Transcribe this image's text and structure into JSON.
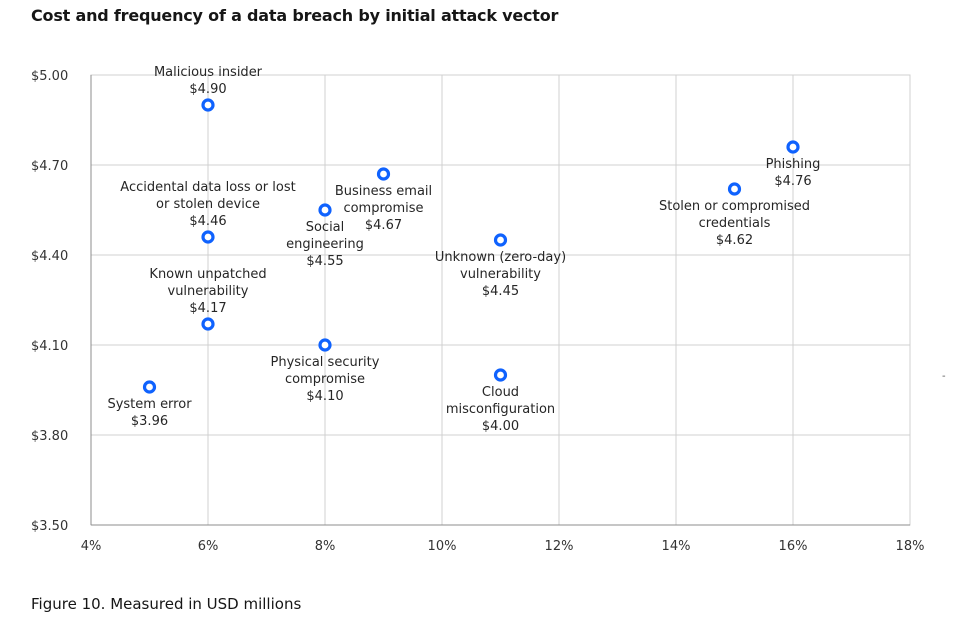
{
  "title": "Cost and frequency of a data breach by initial attack vector",
  "caption": "Figure 10. Measured in USD millions",
  "stray_mark": "-",
  "colors": {
    "marker": "#0f62fe",
    "grid": "#d0d0d0",
    "axis": "#8d8d8d"
  },
  "chart_data": {
    "type": "scatter",
    "title": "Cost and frequency of a data breach by initial attack vector",
    "xlabel": "",
    "ylabel": "",
    "xlim": [
      4,
      18
    ],
    "ylim": [
      3.5,
      5.0
    ],
    "x_ticks": [
      4,
      6,
      8,
      10,
      12,
      14,
      16,
      18
    ],
    "x_tick_labels": [
      "4%",
      "6%",
      "8%",
      "10%",
      "12%",
      "14%",
      "16%",
      "18%"
    ],
    "y_ticks": [
      3.5,
      3.8,
      4.1,
      4.4,
      4.7,
      5.0
    ],
    "y_tick_labels": [
      "$3.50",
      "$3.80",
      "$4.10",
      "$4.40",
      "$4.70",
      "$5.00"
    ],
    "grid": true,
    "points": [
      {
        "name": "Malicious insider",
        "x": 6,
        "y": 4.9,
        "label": [
          "Malicious insider",
          "$4.90"
        ],
        "pos": "above"
      },
      {
        "name": "Accidental data loss or lost or stolen device",
        "x": 6,
        "y": 4.46,
        "label": [
          "Accidental data loss or lost",
          "or stolen device",
          "$4.46"
        ],
        "pos": "above"
      },
      {
        "name": "Known unpatched vulnerability",
        "x": 6,
        "y": 4.17,
        "label": [
          "Known unpatched",
          "vulnerability",
          "$4.17"
        ],
        "pos": "above"
      },
      {
        "name": "System error",
        "x": 5,
        "y": 3.96,
        "label": [
          "System error",
          "$3.96"
        ],
        "pos": "below"
      },
      {
        "name": "Social engineering",
        "x": 8,
        "y": 4.55,
        "label": [
          "Social",
          "engineering",
          "$4.55"
        ],
        "pos": "below-left"
      },
      {
        "name": "Physical security compromise",
        "x": 8,
        "y": 4.1,
        "label": [
          "Physical security",
          "compromise",
          "$4.10"
        ],
        "pos": "below"
      },
      {
        "name": "Business email compromise",
        "x": 9,
        "y": 4.67,
        "label": [
          "Business email",
          "compromise",
          "$4.67"
        ],
        "pos": "below"
      },
      {
        "name": "Unknown (zero-day) vulnerability",
        "x": 11,
        "y": 4.45,
        "label": [
          "Unknown (zero-day)",
          "vulnerability",
          "$4.45"
        ],
        "pos": "below"
      },
      {
        "name": "Cloud misconfiguration",
        "x": 11,
        "y": 4.0,
        "label": [
          "Cloud",
          "misconfiguration",
          "$4.00"
        ],
        "pos": "below"
      },
      {
        "name": "Stolen or compromised credentials",
        "x": 15,
        "y": 4.62,
        "label": [
          "Stolen or compromised",
          "credentials",
          "$4.62"
        ],
        "pos": "below"
      },
      {
        "name": "Phishing",
        "x": 16,
        "y": 4.76,
        "label": [
          "Phishing",
          "$4.76"
        ],
        "pos": "below"
      }
    ]
  }
}
